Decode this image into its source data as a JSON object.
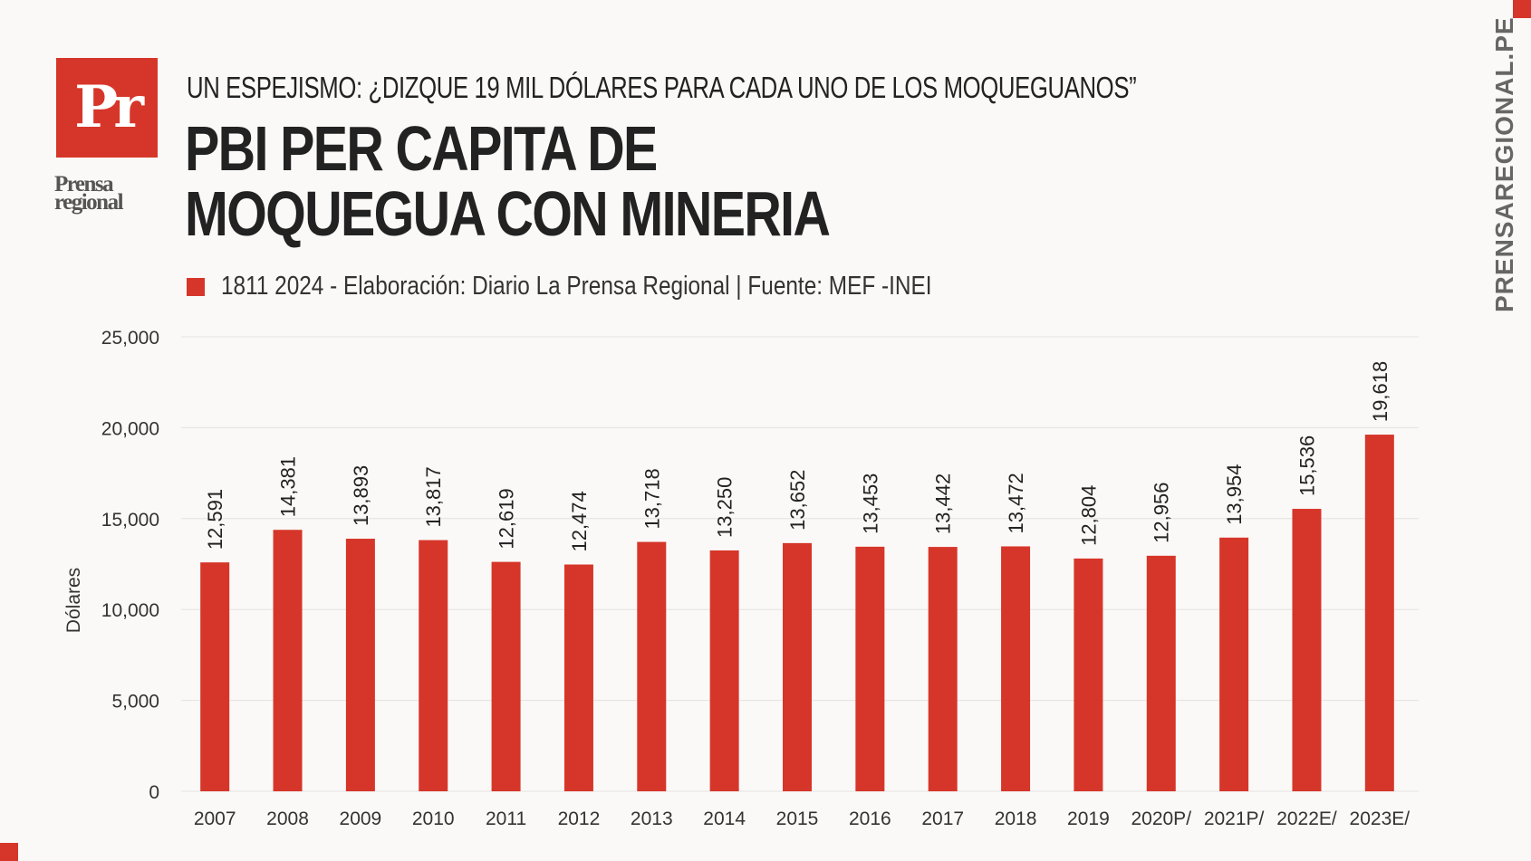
{
  "brand": {
    "logo_mark": "Pr",
    "logo_line1": "Prensa",
    "logo_line2": "regional",
    "side_url": "PRENSAREGIONAL.PE",
    "accent_color": "#d6362a"
  },
  "header": {
    "kicker": "UN ESPEJISMO: ¿DIZQUE 19 MIL DÓLARES PARA CADA UNO DE LOS MOQUEGUANOS”",
    "title_line1": "PBI PER CAPITA DE",
    "title_line2": "MOQUEGUA CON MINERIA"
  },
  "legend": {
    "text": "1811 2024 - Elaboración: Diario La Prensa Regional | Fuente: MEF -INEI"
  },
  "chart_data": {
    "type": "bar",
    "title": "PBI PER CAPITA DE MOQUEGUA CON MINERIA",
    "xlabel": "",
    "ylabel": "Dólares",
    "ylim": [
      0,
      25000
    ],
    "yticks": [
      0,
      5000,
      10000,
      15000,
      20000,
      25000
    ],
    "ytick_labels": [
      "0",
      "5,000",
      "10,000",
      "15,000",
      "20,000",
      "25,000"
    ],
    "grid": true,
    "bar_color": "#d6362a",
    "categories": [
      "2007",
      "2008",
      "2009",
      "2010",
      "2011",
      "2012",
      "2013",
      "2014",
      "2015",
      "2016",
      "2017",
      "2018",
      "2019",
      "2020P/",
      "2021P/",
      "2022E/",
      "2023E/"
    ],
    "values": [
      12591,
      14381,
      13893,
      13817,
      12619,
      12474,
      13718,
      13250,
      13652,
      13453,
      13442,
      13472,
      12804,
      12956,
      13954,
      15536,
      19618
    ],
    "value_labels": [
      "12,591",
      "14,381",
      "13,893",
      "13,817",
      "12,619",
      "12,474",
      "13,718",
      "13,250",
      "13,652",
      "13,453",
      "13,442",
      "13,472",
      "12,804",
      "12,956",
      "13,954",
      "15,536",
      "19,618"
    ]
  }
}
